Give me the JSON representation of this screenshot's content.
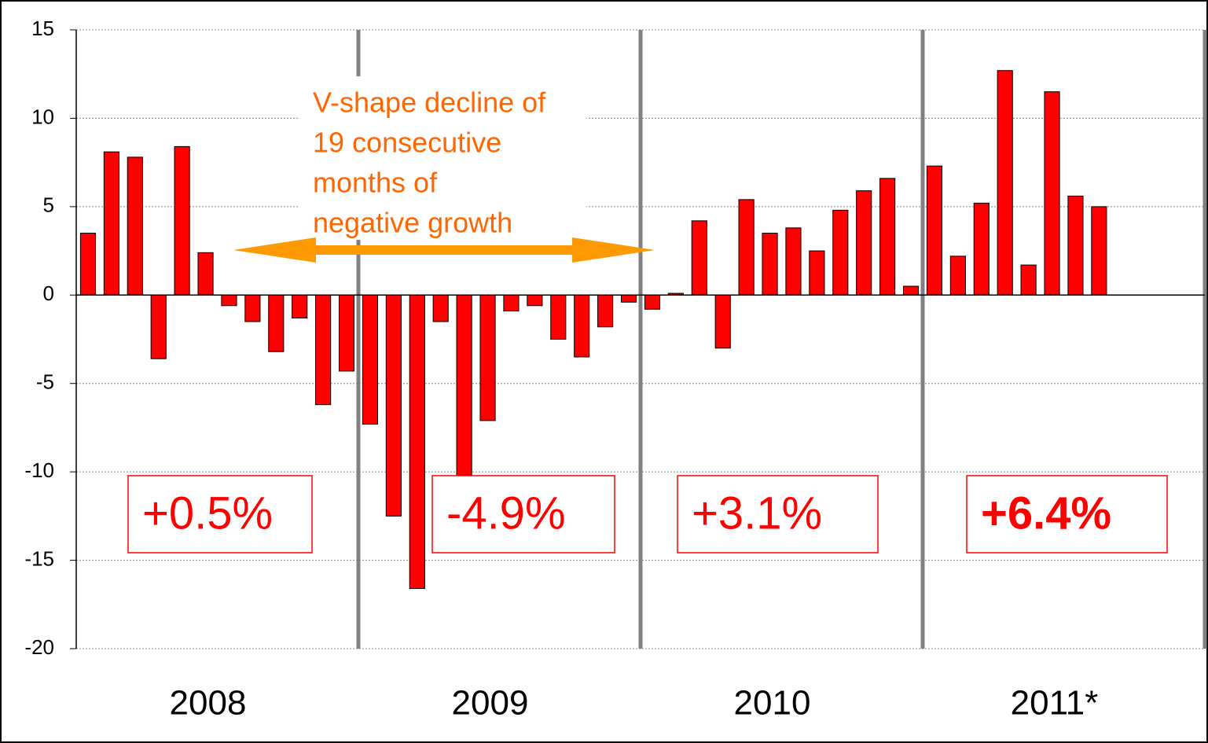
{
  "chart_data": {
    "type": "bar",
    "categories": [
      null,
      null,
      null,
      null,
      null,
      null,
      null,
      null,
      null,
      null,
      null,
      null,
      null,
      null,
      null,
      null,
      null,
      null,
      null,
      null,
      null,
      null,
      null,
      null,
      null,
      null,
      null,
      null,
      null,
      null,
      null,
      null,
      null,
      null,
      null,
      null,
      null,
      null,
      null,
      null,
      null,
      null,
      null,
      null,
      null,
      null,
      null,
      null
    ],
    "values": [
      3.5,
      8.1,
      7.8,
      -3.6,
      8.4,
      2.4,
      -0.6,
      -1.5,
      -3.2,
      -1.3,
      -6.2,
      -4.3,
      -7.3,
      -12.5,
      -16.6,
      -1.5,
      -10.3,
      -7.1,
      -0.9,
      -0.6,
      -2.5,
      -3.5,
      -1.8,
      -0.4,
      -0.8,
      0.1,
      4.2,
      -3.0,
      5.4,
      3.5,
      3.8,
      2.5,
      4.8,
      5.9,
      6.6,
      0.5,
      7.3,
      2.2,
      5.2,
      12.7,
      1.7,
      11.5,
      5.6,
      5.0,
      null,
      null,
      null,
      null
    ],
    "color": "#ff0000",
    "groups": [
      "2008",
      "2009",
      "2010",
      "2011*"
    ],
    "group_annotations": [
      "+0.5%",
      "-4.9%",
      "+3.1%",
      "+6.4%"
    ],
    "annotation": [
      "V-shape decline of",
      "19 consecutive",
      "months of",
      "negative growth"
    ],
    "ylim": [
      -20,
      15
    ],
    "yticks": [
      -20,
      -15,
      -10,
      -5,
      0,
      5,
      10,
      15
    ],
    "grid": true
  }
}
